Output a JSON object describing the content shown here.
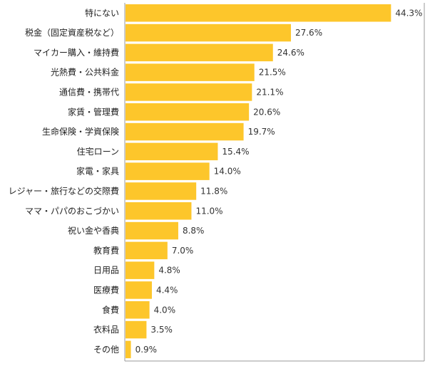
{
  "chart_data": {
    "type": "bar",
    "orientation": "horizontal",
    "categories": [
      "特にない",
      "税金（固定資産税など）",
      "マイカー購入・維持費",
      "光熱費・公共料金",
      "通信費・携帯代",
      "家賃・管理費",
      "生命保険・学資保険",
      "住宅ローン",
      "家電・家具",
      "レジャー・旅行などの交際費",
      "ママ・パパのおこづかい",
      "祝い金や香典",
      "教育費",
      "日用品",
      "医療費",
      "食費",
      "衣料品",
      "その他"
    ],
    "values": [
      44.3,
      27.6,
      24.6,
      21.5,
      21.1,
      20.6,
      19.7,
      15.4,
      14.0,
      11.8,
      11.0,
      8.8,
      7.0,
      4.8,
      4.4,
      4.0,
      3.5,
      0.9
    ],
    "value_labels": [
      "44.3%",
      "27.6%",
      "24.6%",
      "21.5%",
      "21.1%",
      "20.6%",
      "19.7%",
      "15.4%",
      "14.0%",
      "11.8%",
      "11.0%",
      "8.8%",
      "7.0%",
      "4.8%",
      "4.4%",
      "4.0%",
      "3.5%",
      "0.9%"
    ],
    "unit": "%",
    "xlim": [
      0,
      50
    ],
    "title": "",
    "xlabel": "",
    "ylabel": "",
    "grid": false,
    "legend": "none",
    "bar_color": "#FDC62B"
  }
}
